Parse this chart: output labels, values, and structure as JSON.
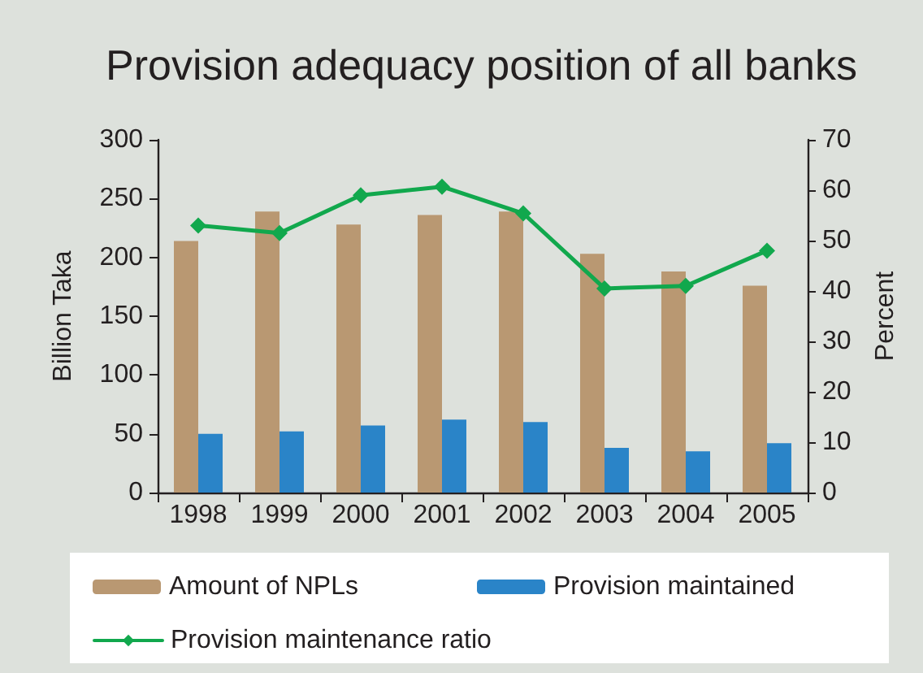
{
  "chart_data": {
    "type": "bar",
    "title": "Provision adequacy position of all banks",
    "ylabel": "Billion Taka",
    "y2label": "Percent",
    "categories": [
      "1998",
      "1999",
      "2000",
      "2001",
      "2002",
      "2003",
      "2004",
      "2005"
    ],
    "series": [
      {
        "name": "Amount of NPLs",
        "color": "#b99872",
        "values": [
          214,
          239,
          228,
          236,
          239,
          203,
          188,
          176
        ]
      },
      {
        "name": "Provision maintained",
        "color": "#2a84c8",
        "values": [
          50,
          52,
          57,
          62,
          60,
          38,
          35,
          42
        ]
      },
      {
        "name": "Provision maintenance ratio",
        "type": "line",
        "axis": "y2",
        "color": "#11a84d",
        "values": [
          53,
          51.5,
          59,
          60.7,
          55.4,
          40.5,
          41,
          48
        ]
      }
    ],
    "ylim": [
      0,
      300
    ],
    "yticks": [
      0,
      50,
      100,
      150,
      200,
      250,
      300
    ],
    "y2lim": [
      0,
      70
    ],
    "y2ticks": [
      0,
      10,
      20,
      30,
      40,
      50,
      60,
      70
    ],
    "marker": "diamond",
    "line_style": "solid",
    "legend": "bottom"
  }
}
